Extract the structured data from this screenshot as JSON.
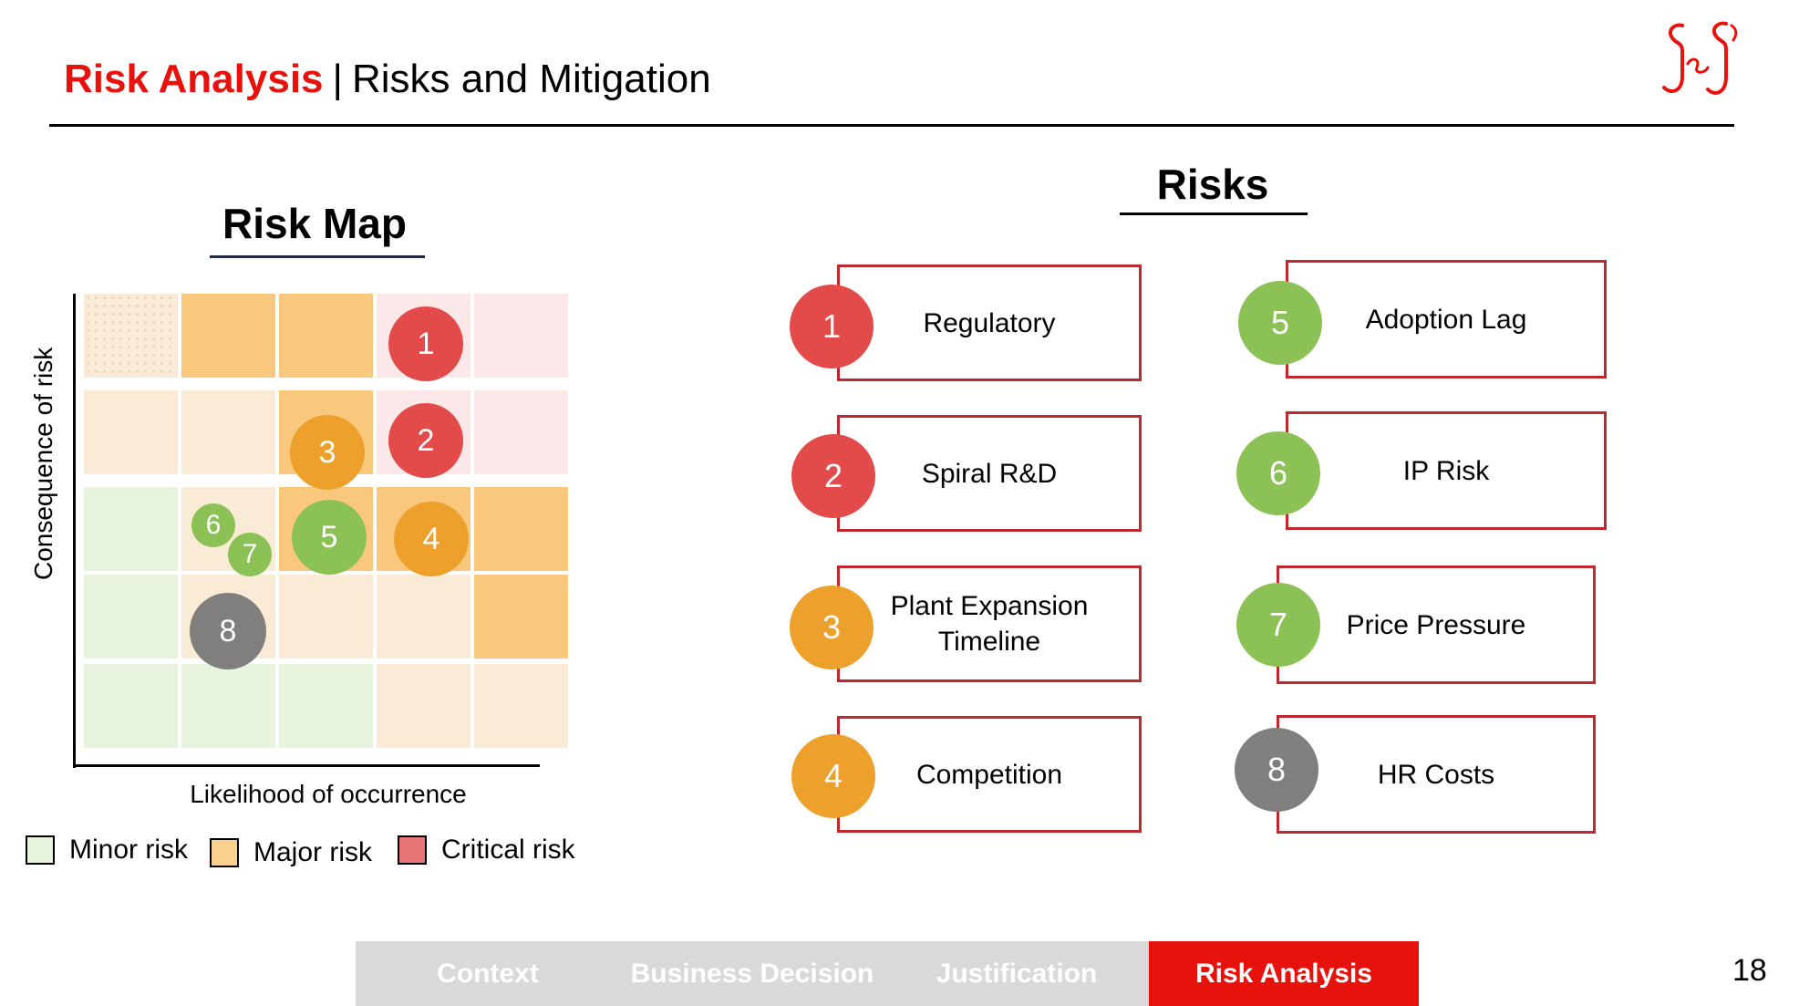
{
  "header": {
    "title_accent": "Risk Analysis",
    "title_separator": "|",
    "title_rest": "Risks and Mitigation",
    "logo_text": "J&J"
  },
  "risk_map": {
    "title": "Risk Map",
    "y_axis_label": "Consequence of risk",
    "x_axis_label": "Likelihood of occurrence",
    "bubbles": [
      "1",
      "2",
      "3",
      "4",
      "5",
      "6",
      "7",
      "8"
    ],
    "legend": [
      "Minor risk",
      "Major risk",
      "Critical risk"
    ]
  },
  "risks": {
    "title": "Risks",
    "items": [
      {
        "number": "1",
        "label": "Regulatory"
      },
      {
        "number": "2",
        "label": "Spiral R&D"
      },
      {
        "number": "3",
        "label_line1": "Plant Expansion",
        "label_line2": "Timeline"
      },
      {
        "number": "4",
        "label": "Competition"
      },
      {
        "number": "5",
        "label": "Adoption Lag"
      },
      {
        "number": "6",
        "label": "IP Risk"
      },
      {
        "number": "7",
        "label": "Price Pressure"
      },
      {
        "number": "8",
        "label": "HR Costs"
      }
    ]
  },
  "colors": {
    "accent": "#e8120c",
    "critical": "#e34b4b",
    "major": "#eda12c",
    "minor": "#8cc255",
    "neutral": "#807f7d",
    "box_border": "#c0282f"
  },
  "nav": {
    "items": [
      "Context",
      "Business Decision",
      "Justification",
      "Risk Analysis"
    ],
    "active": "Risk Analysis"
  },
  "page_number": "18"
}
